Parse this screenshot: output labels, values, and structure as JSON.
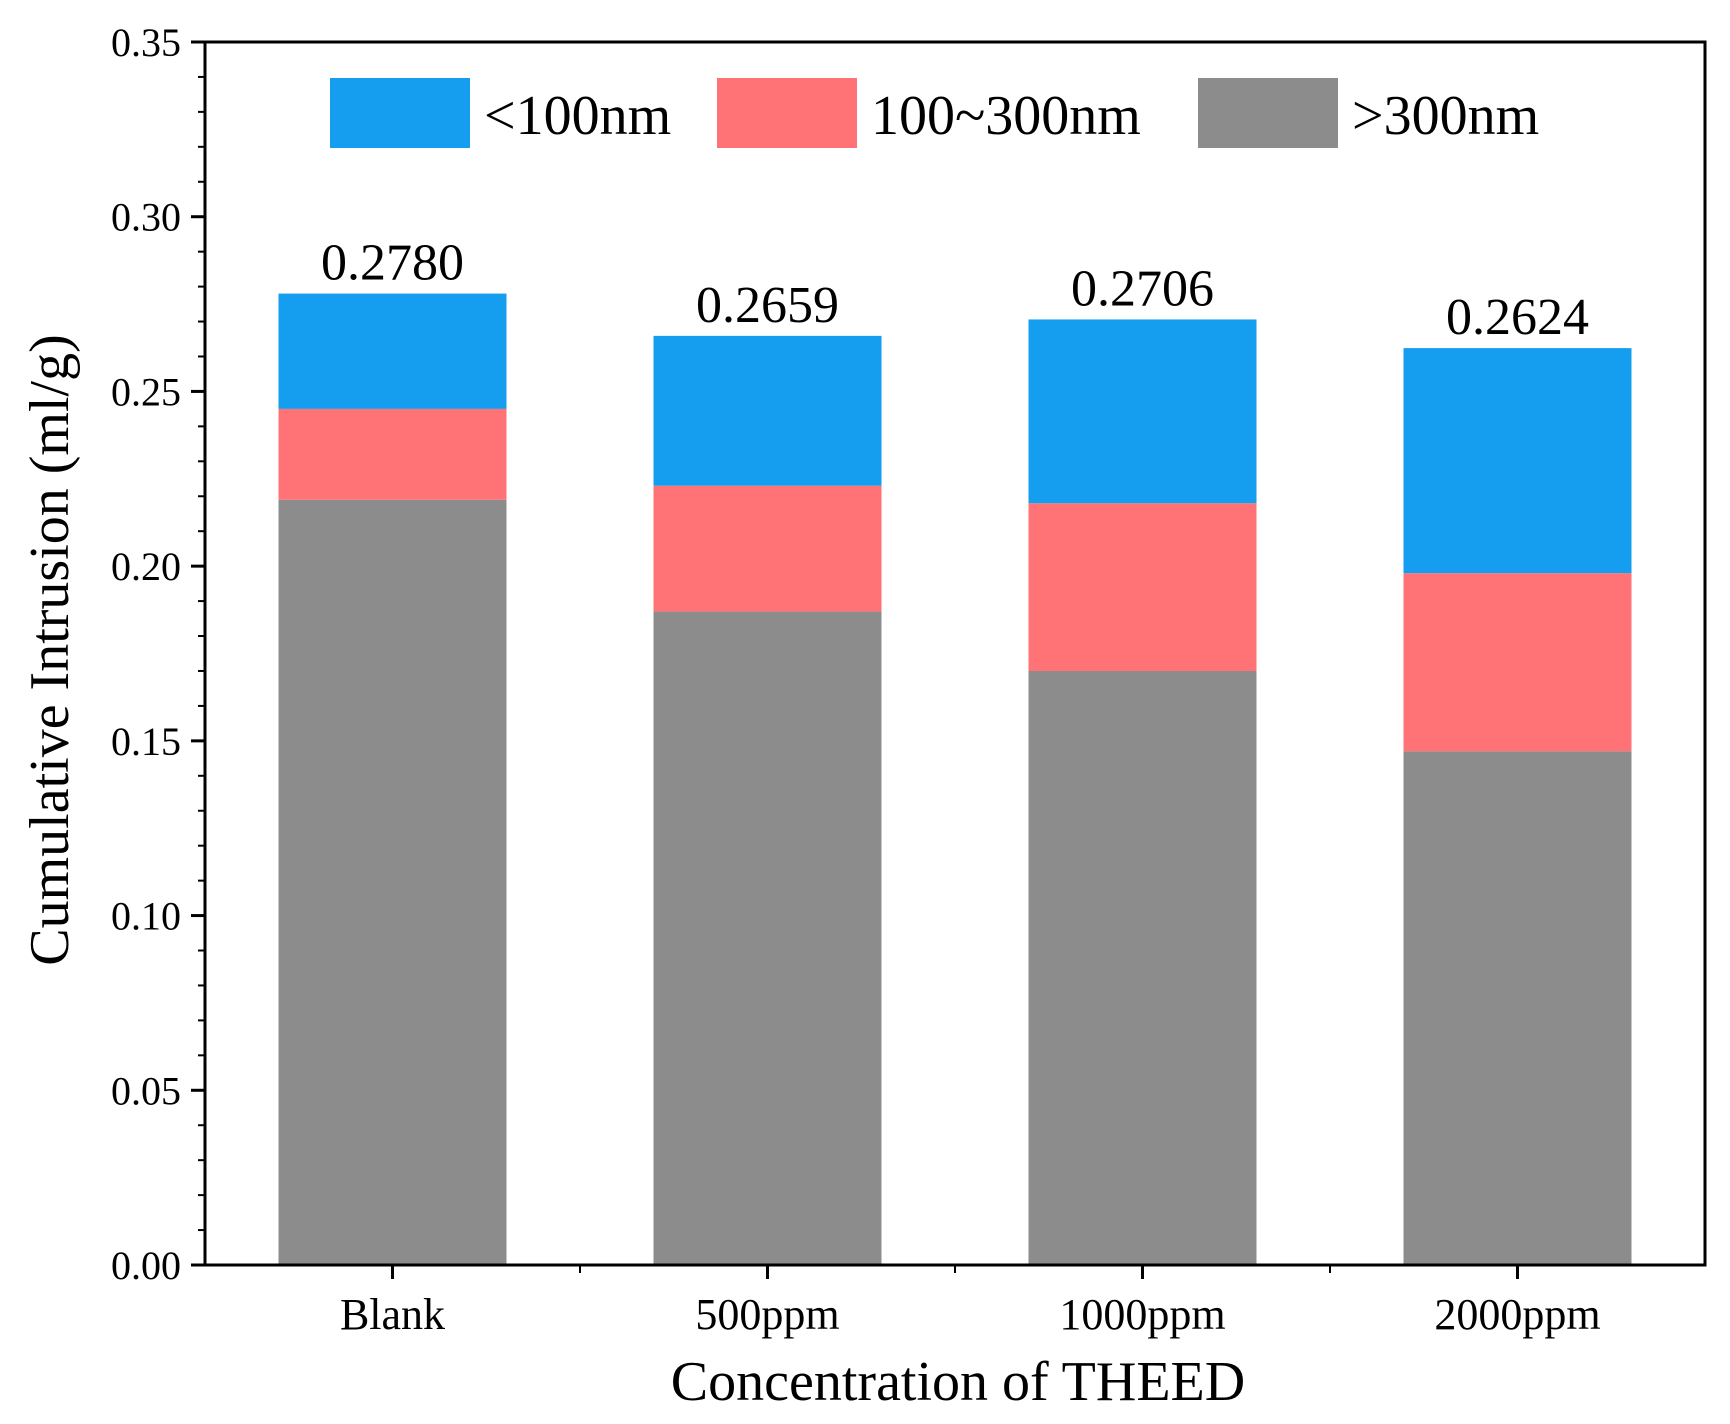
{
  "chart_data": {
    "type": "bar",
    "stacked": true,
    "title": "",
    "xlabel": "Concentration of THEED",
    "ylabel": "Cumulative Intrusion (ml/g)",
    "ylim": [
      0,
      0.35
    ],
    "yticks": [
      "0.00",
      "0.05",
      "0.10",
      "0.15",
      "0.20",
      "0.25",
      "0.30",
      "0.35"
    ],
    "categories": [
      "Blank",
      "500ppm",
      "1000ppm",
      "2000ppm"
    ],
    "series": [
      {
        "name": ">300nm",
        "color": "#8c8c8c",
        "values": [
          0.219,
          0.187,
          0.17,
          0.147
        ]
      },
      {
        "name": "100~300nm",
        "color": "#ff7376",
        "values": [
          0.026,
          0.036,
          0.048,
          0.051
        ]
      },
      {
        "name": "<100nm",
        "color": "#159ef0",
        "values": [
          0.033,
          0.0429,
          0.0526,
          0.0644
        ]
      }
    ],
    "totals": [
      "0.2780",
      "0.2659",
      "0.2706",
      "0.2624"
    ],
    "legend": {
      "position": "top",
      "entries": [
        "<100nm",
        "100~300nm",
        ">300nm"
      ]
    },
    "grid": false
  }
}
